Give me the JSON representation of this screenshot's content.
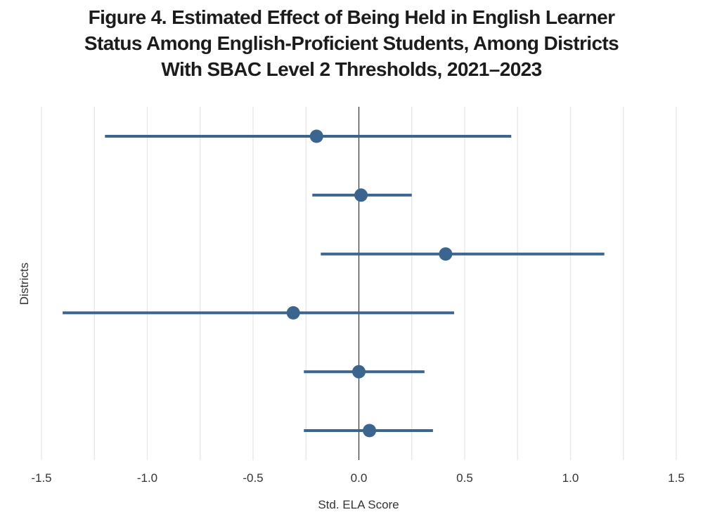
{
  "title": {
    "line1": "Figure 4. Estimated Effect of Being Held in English Learner",
    "line2": "Status Among English-Proficient Students, Among Districts",
    "line3": "With SBAC Level 2 Thresholds, 2021–2023"
  },
  "colors": {
    "point": "#3b648e",
    "grid": "#e6e6e6",
    "zero_line": "#333333"
  },
  "chart_data": {
    "type": "scatter",
    "subtype": "coefficient-plot",
    "xlabel": "Std. ELA Score",
    "ylabel": "Districts",
    "xlim": [
      -1.5,
      1.5
    ],
    "x_ticks": [
      -1.5,
      -1.25,
      -1.0,
      -0.75,
      -0.5,
      -0.25,
      0.0,
      0.25,
      0.5,
      0.75,
      1.0,
      1.25,
      1.5
    ],
    "x_tick_labels": [
      {
        "value": -1.5,
        "label": "-1.5"
      },
      {
        "value": -1.0,
        "label": "-1.0"
      },
      {
        "value": -0.5,
        "label": "-0.5"
      },
      {
        "value": 0.0,
        "label": "0.0"
      },
      {
        "value": 0.5,
        "label": "0.5"
      },
      {
        "value": 1.0,
        "label": "1.0"
      },
      {
        "value": 1.5,
        "label": "1.5"
      }
    ],
    "grid": true,
    "zero_reference_line": true,
    "points": [
      {
        "estimate": -0.2,
        "ci_low": -1.2,
        "ci_high": 0.72
      },
      {
        "estimate": 0.01,
        "ci_low": -0.22,
        "ci_high": 0.25
      },
      {
        "estimate": 0.41,
        "ci_low": -0.18,
        "ci_high": 1.16
      },
      {
        "estimate": -0.31,
        "ci_low": -1.4,
        "ci_high": 0.45
      },
      {
        "estimate": 0.0,
        "ci_low": -0.26,
        "ci_high": 0.31
      },
      {
        "estimate": 0.05,
        "ci_low": -0.26,
        "ci_high": 0.35
      }
    ]
  }
}
